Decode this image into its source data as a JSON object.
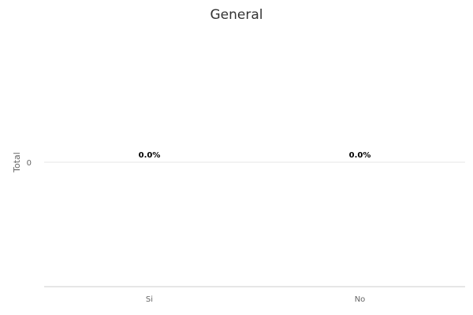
{
  "chart_data": {
    "type": "bar",
    "title": "General",
    "xlabel": "",
    "ylabel": "Total",
    "categories": [
      "Si",
      "No"
    ],
    "values": [
      0,
      0
    ],
    "data_labels": [
      "0.0%",
      "0.0%"
    ],
    "y_ticks": [
      "0"
    ],
    "grid": true,
    "legend": "none",
    "colors": {
      "bar": "#7cb5ec",
      "data_label": "#000000",
      "title": "#333333",
      "axis_text": "#666666",
      "gridline": "#e6e6e6",
      "baseline": "#cccccc"
    }
  }
}
